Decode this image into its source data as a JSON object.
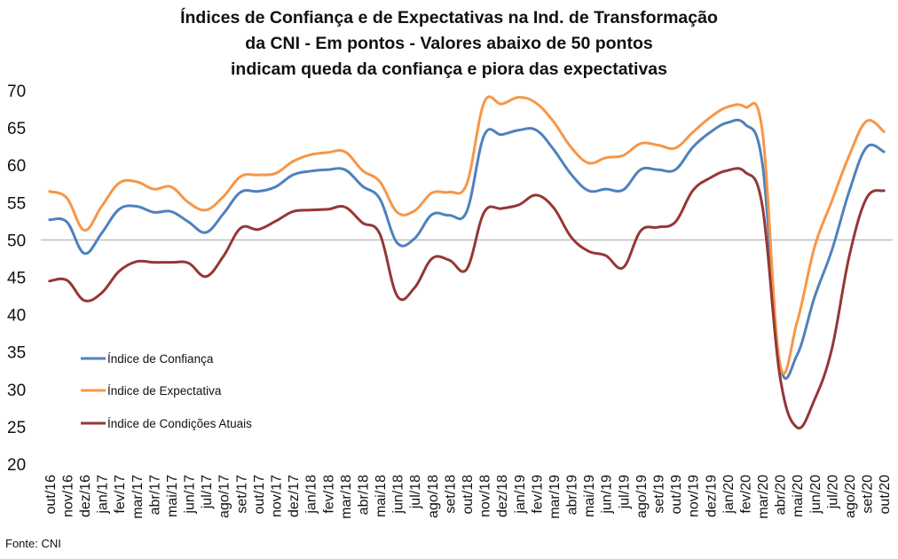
{
  "chart_data": {
    "type": "line",
    "title_lines": [
      "Índices de Confiança e de Expectativas na Ind. de Transformação",
      "da CNI - Em pontos - Valores abaixo de 50 pontos",
      "indicam queda da confiança e piora das expectativas"
    ],
    "xlabel": "",
    "ylabel": "",
    "ylim": [
      20,
      70
    ],
    "yticks": [
      20,
      25,
      30,
      35,
      40,
      45,
      50,
      55,
      60,
      65,
      70
    ],
    "reference_line": 50,
    "grid": false,
    "legend_position": "left-middle",
    "categories": [
      "out/16",
      "nov/16",
      "dez/16",
      "jan/17",
      "fev/17",
      "mar/17",
      "abr/17",
      "mai/17",
      "jun/17",
      "jul/17",
      "ago/17",
      "set/17",
      "out/17",
      "nov/17",
      "dez/17",
      "jan/18",
      "fev/18",
      "mar/18",
      "abr/18",
      "mai/18",
      "jun/18",
      "jul/18",
      "ago/18",
      "set/18",
      "out/18",
      "nov/18",
      "dez/18",
      "jan/19",
      "fev/19",
      "mar/19",
      "abr/19",
      "mai/19",
      "jun/19",
      "jul/19",
      "ago/19",
      "set/19",
      "out/19",
      "nov/19",
      "dez/19",
      "jan/20",
      "fev/20",
      "mar/20",
      "abr/20",
      "mai/20",
      "jun/20",
      "jul/20",
      "ago/20",
      "set/20",
      "out/20"
    ],
    "series": [
      {
        "name": "Índice de Confiança",
        "color": "#4f81bd",
        "values": [
          52.7,
          52.4,
          48.2,
          50.9,
          54.1,
          54.5,
          53.7,
          53.8,
          52.4,
          51.0,
          53.5,
          56.4,
          56.5,
          57.1,
          58.7,
          59.2,
          59.4,
          59.4,
          57.2,
          55.5,
          49.6,
          50.2,
          53.4,
          53.3,
          53.8,
          64.0,
          64.1,
          64.7,
          64.7,
          62.1,
          58.8,
          56.6,
          56.8,
          56.7,
          59.4,
          59.4,
          59.4,
          62.4,
          64.4,
          65.7,
          65.5,
          60.3,
          33.6,
          34.6,
          42.3,
          48.6,
          56.5,
          62.4,
          61.8
        ]
      },
      {
        "name": "Índice de Expectativa",
        "color": "#f79646",
        "values": [
          56.5,
          55.6,
          51.3,
          54.5,
          57.6,
          57.8,
          56.8,
          57.1,
          55.0,
          54.0,
          55.8,
          58.5,
          58.7,
          58.9,
          60.5,
          61.4,
          61.7,
          61.8,
          59.3,
          57.8,
          53.7,
          53.9,
          56.3,
          56.4,
          57.5,
          68.4,
          68.2,
          69.1,
          68.3,
          65.8,
          62.4,
          60.3,
          61.0,
          61.3,
          62.9,
          62.7,
          62.3,
          64.4,
          66.4,
          67.8,
          67.8,
          64.6,
          33.6,
          39.0,
          49.0,
          55.2,
          61.3,
          65.9,
          64.5
        ]
      },
      {
        "name": "Índice de Condições Atuais",
        "color": "#953735",
        "values": [
          44.5,
          44.6,
          41.9,
          42.9,
          45.8,
          47.1,
          47.0,
          47.0,
          46.9,
          45.1,
          47.8,
          51.6,
          51.4,
          52.5,
          53.8,
          54.0,
          54.1,
          54.4,
          52.3,
          50.8,
          42.5,
          43.6,
          47.5,
          47.3,
          46.1,
          53.7,
          54.2,
          54.7,
          56.0,
          54.3,
          50.4,
          48.5,
          47.9,
          46.3,
          51.2,
          51.7,
          52.4,
          56.6,
          58.3,
          59.3,
          59.1,
          54.6,
          32.0,
          24.9,
          28.6,
          35.4,
          47.8,
          55.6,
          56.6
        ]
      }
    ],
    "source": "Fonte: CNI"
  }
}
